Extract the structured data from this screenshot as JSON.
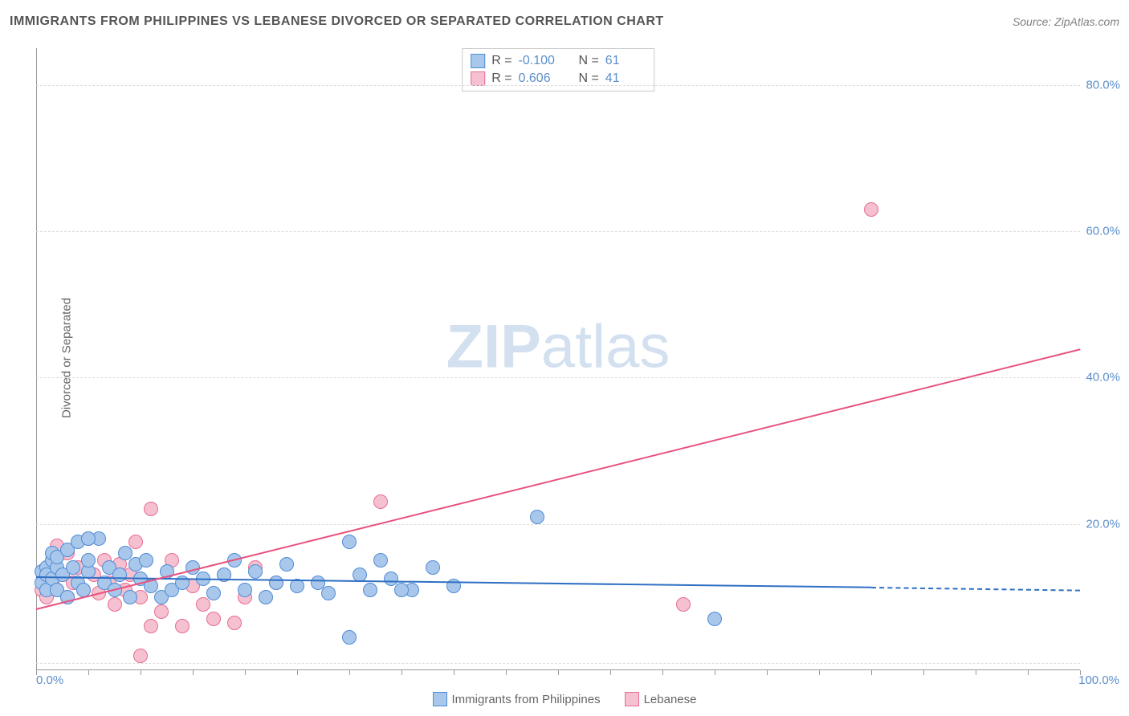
{
  "header": {
    "title": "IMMIGRANTS FROM PHILIPPINES VS LEBANESE DIVORCED OR SEPARATED CORRELATION CHART",
    "source": "Source: ZipAtlas.com"
  },
  "watermark": {
    "bold": "ZIP",
    "light": "atlas"
  },
  "chart": {
    "type": "scatter",
    "ylabel": "Divorced or Separated",
    "xlim": [
      0,
      100
    ],
    "ylim": [
      0,
      85
    ],
    "background_color": "#ffffff",
    "grid_color": "#dcdcdc",
    "axis_color": "#999999",
    "tick_label_color": "#5b8ecb",
    "ylabel_color": "#666666",
    "title_color": "#555555",
    "title_fontsize": 16,
    "label_fontsize": 15,
    "ytick_positions": [
      1,
      20,
      40,
      60,
      80
    ],
    "ytick_labels": [
      "",
      "20.0%",
      "40.0%",
      "60.0%",
      "80.0%"
    ],
    "xtick_positions": [
      0,
      20,
      40,
      60,
      80,
      100
    ],
    "xtick_minor_positions": [
      5,
      10,
      15,
      25,
      30,
      35,
      45,
      50,
      55,
      65,
      70,
      75,
      85,
      90,
      95
    ],
    "xaxis_left_label": "0.0%",
    "xaxis_right_label": "100.0%",
    "marker_radius": 9,
    "marker_stroke_width": 1.5,
    "marker_fill_opacity": 0.35,
    "line_width": 2
  },
  "series": {
    "philippines": {
      "label": "Immigrants from Philippines",
      "color_fill": "#a9c7ea",
      "color_stroke": "#4f8cd6",
      "line_color": "#2f6fc4",
      "R": "-0.100",
      "N": "61",
      "trend": {
        "x1": 0,
        "y1": 12.8,
        "x2": 80,
        "y2": 11.4,
        "dash_x2": 100,
        "dash_y2": 11.0
      },
      "points": [
        [
          0.5,
          13.5
        ],
        [
          0.5,
          12
        ],
        [
          1,
          14
        ],
        [
          1,
          11
        ],
        [
          1,
          13
        ],
        [
          1.5,
          15
        ],
        [
          1.5,
          12.5
        ],
        [
          1.5,
          16
        ],
        [
          2,
          11
        ],
        [
          2,
          14
        ],
        [
          2,
          15.5
        ],
        [
          2.5,
          13
        ],
        [
          3,
          16.5
        ],
        [
          3,
          10
        ],
        [
          3.5,
          14
        ],
        [
          4,
          12
        ],
        [
          4,
          17.5
        ],
        [
          4.5,
          11
        ],
        [
          5,
          13.5
        ],
        [
          5,
          15
        ],
        [
          6,
          18
        ],
        [
          6.5,
          12
        ],
        [
          7,
          14
        ],
        [
          7.5,
          11
        ],
        [
          8,
          13
        ],
        [
          8.5,
          16
        ],
        [
          9,
          10
        ],
        [
          9.5,
          14.5
        ],
        [
          10,
          12.5
        ],
        [
          10.5,
          15
        ],
        [
          11,
          11.5
        ],
        [
          12,
          10
        ],
        [
          12.5,
          13.5
        ],
        [
          13,
          11
        ],
        [
          14,
          12
        ],
        [
          15,
          14
        ],
        [
          16,
          12.5
        ],
        [
          17,
          10.5
        ],
        [
          18,
          13
        ],
        [
          19,
          15
        ],
        [
          20,
          11
        ],
        [
          21,
          13.5
        ],
        [
          22,
          10
        ],
        [
          23,
          12
        ],
        [
          24,
          14.5
        ],
        [
          25,
          11.5
        ],
        [
          27,
          12
        ],
        [
          28,
          10.5
        ],
        [
          30,
          17.5
        ],
        [
          31,
          13
        ],
        [
          32,
          11
        ],
        [
          33,
          15
        ],
        [
          34,
          12.5
        ],
        [
          36,
          11
        ],
        [
          38,
          14
        ],
        [
          40,
          11.5
        ],
        [
          30,
          4.5
        ],
        [
          48,
          21
        ],
        [
          65,
          7
        ],
        [
          35,
          11
        ],
        [
          5,
          18
        ]
      ]
    },
    "lebanese": {
      "label": "Lebanese",
      "color_fill": "#f5c0cf",
      "color_stroke": "#e86d93",
      "line_color": "#e8527e",
      "R": "0.606",
      "N": "41",
      "trend": {
        "x1": 0,
        "y1": 8.5,
        "x2": 100,
        "y2": 44
      },
      "points": [
        [
          0.5,
          11
        ],
        [
          1,
          13
        ],
        [
          1,
          10
        ],
        [
          1.5,
          14.5
        ],
        [
          1.5,
          12
        ],
        [
          2,
          11
        ],
        [
          2,
          17
        ],
        [
          2.5,
          13
        ],
        [
          3,
          10
        ],
        [
          3,
          16
        ],
        [
          3.5,
          12
        ],
        [
          4,
          14
        ],
        [
          4.5,
          11
        ],
        [
          5,
          18
        ],
        [
          5.5,
          13
        ],
        [
          6,
          10.5
        ],
        [
          6.5,
          15
        ],
        [
          7,
          12
        ],
        [
          7.5,
          9
        ],
        [
          8,
          14.5
        ],
        [
          8.5,
          11
        ],
        [
          9,
          13
        ],
        [
          9.5,
          17.5
        ],
        [
          10,
          10
        ],
        [
          11,
          6
        ],
        [
          11,
          22
        ],
        [
          12,
          8
        ],
        [
          13,
          15
        ],
        [
          14,
          6
        ],
        [
          15,
          11.5
        ],
        [
          16,
          9
        ],
        [
          17,
          7
        ],
        [
          18,
          13
        ],
        [
          19,
          6.5
        ],
        [
          20,
          10
        ],
        [
          21,
          14
        ],
        [
          23,
          12
        ],
        [
          10,
          2
        ],
        [
          33,
          23
        ],
        [
          62,
          9
        ],
        [
          80,
          63
        ]
      ]
    }
  },
  "legend": {
    "R_label": "R = ",
    "N_label": "N = "
  }
}
